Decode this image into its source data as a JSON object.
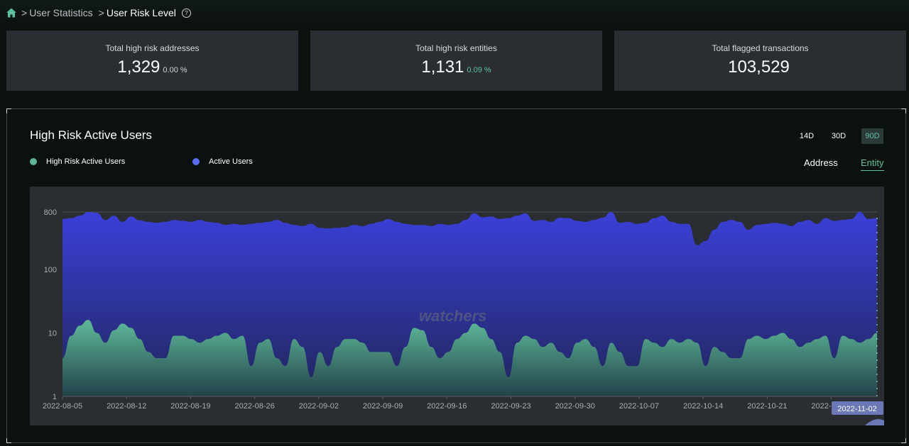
{
  "breadcrumb": {
    "separator": ">",
    "items": [
      "User Statistics",
      "User Risk Level"
    ]
  },
  "stats": [
    {
      "label": "Total high risk addresses",
      "value": "1,329",
      "change": "0.00 %",
      "change_color": "#cfd3d6"
    },
    {
      "label": "Total high risk entities",
      "value": "1,131",
      "change": "0.09 %",
      "change_color": "#5fc0a0"
    },
    {
      "label": "Total flagged transactions",
      "value": "103,529",
      "change": "",
      "change_color": "#cfd3d6"
    }
  ],
  "panel": {
    "title": "High Risk Active Users",
    "ranges": [
      "14D",
      "30D",
      "90D"
    ],
    "active_range": "90D",
    "legend": [
      {
        "name": "High Risk Active Users",
        "color": "#5bb598"
      },
      {
        "name": "Active Users",
        "color": "#5b6ef0"
      }
    ],
    "toggles": [
      "Address",
      "Entity"
    ],
    "active_toggle": "Entity"
  },
  "watermark": "watchers",
  "colors": {
    "high_risk": "#5bb598",
    "active": "#3a3fd6",
    "accent": "#5fc0a0",
    "tooltip_bg": "#6b78b8"
  },
  "chart_data": {
    "type": "area",
    "y_scale": "log",
    "ylim": [
      1,
      800
    ],
    "y_ticks": [
      1,
      10,
      100,
      800
    ],
    "x_tick_labels": [
      "2022-08-05",
      "2022-08-12",
      "2022-08-19",
      "2022-08-26",
      "2022-09-02",
      "2022-09-09",
      "2022-09-16",
      "2022-09-23",
      "2022-09-30",
      "2022-10-07",
      "2022-10-14",
      "2022-10-21",
      "2022-10-28"
    ],
    "highlight_label": "2022-11-02",
    "x_start": "2022-08-05",
    "x_end": "2022-11-02",
    "series": [
      {
        "name": "Active Users",
        "values": [
          620,
          640,
          700,
          800,
          780,
          600,
          700,
          560,
          680,
          590,
          560,
          540,
          560,
          600,
          580,
          560,
          600,
          560,
          540,
          500,
          520,
          500,
          520,
          540,
          560,
          600,
          540,
          500,
          480,
          520,
          450,
          440,
          450,
          460,
          500,
          480,
          520,
          560,
          620,
          560,
          520,
          500,
          500,
          480,
          520,
          500,
          520,
          600,
          760,
          660,
          680,
          620,
          640,
          700,
          760,
          580,
          600,
          560,
          650,
          640,
          580,
          560,
          600,
          650,
          800,
          540,
          560,
          520,
          540,
          640,
          700,
          560,
          520,
          520,
          240,
          280,
          420,
          560,
          600,
          560,
          420,
          500,
          520,
          540,
          520,
          480,
          560,
          600,
          520,
          640,
          580,
          600,
          620,
          800,
          620,
          640
        ]
      },
      {
        "name": "High Risk Active Users",
        "values": [
          4,
          9,
          13,
          16,
          10,
          7,
          11,
          14,
          12,
          8,
          5,
          4,
          4,
          9,
          9,
          8,
          7,
          8,
          9,
          10,
          8,
          9,
          3,
          7,
          8,
          4,
          3,
          8,
          6,
          2,
          5,
          3,
          6,
          8,
          8,
          7,
          5,
          5,
          5,
          3,
          6,
          12,
          11,
          6,
          4,
          5,
          8,
          10,
          14,
          12,
          8,
          5,
          2,
          7,
          9,
          8,
          6,
          7,
          5,
          4,
          7,
          8,
          6,
          3,
          7,
          5,
          3,
          3,
          8,
          7,
          6,
          8,
          7,
          8,
          7,
          3,
          6,
          5,
          4,
          4,
          8,
          9,
          8,
          9,
          10,
          8,
          6,
          7,
          8,
          9,
          4,
          9,
          8,
          7,
          8,
          10
        ]
      }
    ]
  }
}
